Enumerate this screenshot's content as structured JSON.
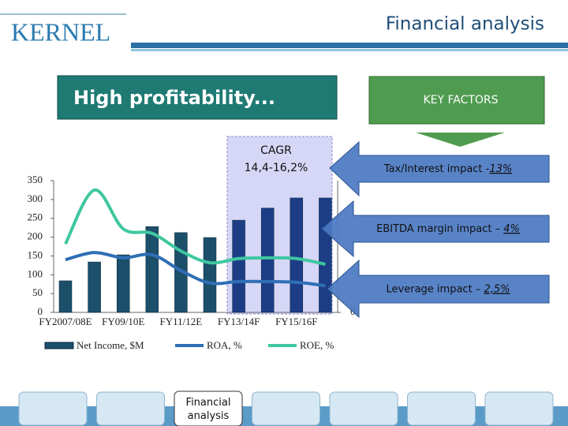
{
  "header": {
    "logo": "KERNEL",
    "section": "Financial analysis",
    "title": "High profitability..."
  },
  "key_factors": {
    "title": "KEY FACTORS",
    "items": [
      {
        "text": "Tax/Interest impact -",
        "figure": "13%"
      },
      {
        "text": "EBITDA margin impact – ",
        "figure": "4%"
      },
      {
        "text": "Leverage impact – ",
        "figure": "2,5%"
      }
    ]
  },
  "chart_data": {
    "type": "bar_line",
    "annotation": [
      "CAGR",
      "14,4-16,2%"
    ],
    "categories": [
      "FY2007/08E",
      null,
      "FY09/10E",
      null,
      "FY11/12E",
      null,
      "FY13/14F",
      null,
      "FY15/16F",
      null
    ],
    "series": [
      {
        "name": "Net Income, $M",
        "type": "bar",
        "color": "#1b4f6a",
        "highlight_color": "#1c3d86",
        "values": [
          84,
          134,
          153,
          228,
          212,
          199,
          245,
          277,
          304,
          304
        ]
      },
      {
        "name": "ROA, %",
        "type": "line",
        "axis": "y2",
        "color": "#2f6fb5",
        "values": [
          14,
          15.9,
          14.5,
          15.3,
          11.1,
          7.8,
          8.2,
          8.2,
          8,
          7.1
        ]
      },
      {
        "name": "ROE, %",
        "type": "line",
        "axis": "y2",
        "color": "#3fc7a0",
        "values": [
          18.2,
          32.5,
          22.2,
          21,
          16.3,
          13.2,
          14.3,
          14.5,
          14.3,
          12.8
        ]
      }
    ],
    "ylim": [
      0,
      350
    ],
    "yticks": [
      0,
      50,
      100,
      150,
      200,
      250,
      300,
      350
    ],
    "y2lim": [
      0,
      35
    ],
    "y2ticks": [
      0
    ],
    "legend": "bottom"
  },
  "nav": {
    "tabs": [
      "",
      "",
      "Financial analysis",
      "",
      "",
      "",
      ""
    ],
    "active": 2
  }
}
